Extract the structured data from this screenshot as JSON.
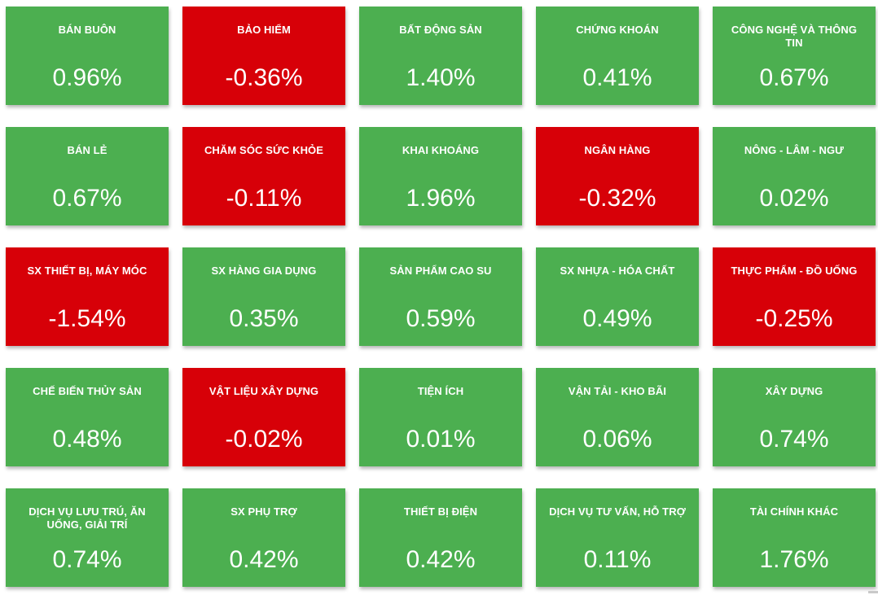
{
  "colors": {
    "positive_bg": "#4CAF50",
    "negative_bg": "#D70008",
    "tile_text": "#FFFFFF",
    "page_bg": "#FFFFFF"
  },
  "tiles": [
    {
      "name": "BÁN BUÔN",
      "value": "0.96%",
      "direction": "up"
    },
    {
      "name": "BẢO HIỂM",
      "value": "-0.36%",
      "direction": "down"
    },
    {
      "name": "BẤT ĐỘNG SẢN",
      "value": "1.40%",
      "direction": "up"
    },
    {
      "name": "CHỨNG KHOÁN",
      "value": "0.41%",
      "direction": "up"
    },
    {
      "name": "CÔNG NGHỆ VÀ THÔNG\nTIN",
      "value": "0.67%",
      "direction": "up"
    },
    {
      "name": "BÁN LẺ",
      "value": "0.67%",
      "direction": "up"
    },
    {
      "name": "CHĂM SÓC SỨC KHỎE",
      "value": "-0.11%",
      "direction": "down"
    },
    {
      "name": "KHAI KHOÁNG",
      "value": "1.96%",
      "direction": "up"
    },
    {
      "name": "NGÂN HÀNG",
      "value": "-0.32%",
      "direction": "down"
    },
    {
      "name": "NÔNG - LÂM - NGƯ",
      "value": "0.02%",
      "direction": "up"
    },
    {
      "name": "SX THIẾT BỊ, MÁY MÓC",
      "value": "-1.54%",
      "direction": "down"
    },
    {
      "name": "SX HÀNG GIA DỤNG",
      "value": "0.35%",
      "direction": "up"
    },
    {
      "name": "SẢN PHẨM CAO SU",
      "value": "0.59%",
      "direction": "up"
    },
    {
      "name": "SX NHỰA - HÓA CHẤT",
      "value": "0.49%",
      "direction": "up"
    },
    {
      "name": "THỰC PHẨM - ĐỒ UỐNG",
      "value": "-0.25%",
      "direction": "down"
    },
    {
      "name": "CHẾ BIẾN THỦY SẢN",
      "value": "0.48%",
      "direction": "up"
    },
    {
      "name": "VẬT LIỆU XÂY DỰNG",
      "value": "-0.02%",
      "direction": "down"
    },
    {
      "name": "TIỆN ÍCH",
      "value": "0.01%",
      "direction": "up"
    },
    {
      "name": "VẬN TẢI - KHO BÃI",
      "value": "0.06%",
      "direction": "up"
    },
    {
      "name": "XÂY DỰNG",
      "value": "0.74%",
      "direction": "up"
    },
    {
      "name": "DỊCH VỤ LƯU TRÚ, ĂN\nUỐNG, GIẢI TRÍ",
      "value": "0.74%",
      "direction": "up"
    },
    {
      "name": "SX PHỤ TRỢ",
      "value": "0.42%",
      "direction": "up"
    },
    {
      "name": "THIẾT BỊ ĐIỆN",
      "value": "0.42%",
      "direction": "up"
    },
    {
      "name": "DỊCH VỤ TƯ VẤN, HỖ TRỢ",
      "value": "0.11%",
      "direction": "up"
    },
    {
      "name": "TÀI CHÍNH KHÁC",
      "value": "1.76%",
      "direction": "up"
    }
  ],
  "chart_data": {
    "type": "heatmap",
    "layout": "5x5 tile grid, row-major",
    "unit": "%",
    "categories": [
      "BÁN BUÔN",
      "BẢO HIỂM",
      "BẤT ĐỘNG SẢN",
      "CHỨNG KHOÁN",
      "CÔNG NGHỆ VÀ THÔNG TIN",
      "BÁN LẺ",
      "CHĂM SÓC SỨC KHỎE",
      "KHAI KHOÁNG",
      "NGÂN HÀNG",
      "NÔNG - LÂM - NGƯ",
      "SX THIẾT BỊ, MÁY MÓC",
      "SX HÀNG GIA DỤNG",
      "SẢN PHẨM CAO SU",
      "SX NHỰA - HÓA CHẤT",
      "THỰC PHẨM - ĐỒ UỐNG",
      "CHẾ BIẾN THỦY SẢN",
      "VẬT LIỆU XÂY DỰNG",
      "TIỆN ÍCH",
      "VẬN TẢI - KHO BÃI",
      "XÂY DỰNG",
      "DỊCH VỤ LƯU TRÚ, ĂN UỐNG, GIẢI TRÍ",
      "SX PHỤ TRỢ",
      "THIẾT BỊ ĐIỆN",
      "DỊCH VỤ TƯ VẤN, HỖ TRỢ",
      "TÀI CHÍNH KHÁC"
    ],
    "values": [
      0.96,
      -0.36,
      1.4,
      0.41,
      0.67,
      0.67,
      -0.11,
      1.96,
      -0.32,
      0.02,
      -1.54,
      0.35,
      0.59,
      0.49,
      -0.25,
      0.48,
      -0.02,
      0.01,
      0.06,
      0.74,
      0.74,
      0.42,
      0.42,
      0.11,
      1.76
    ],
    "positive_color": "#4CAF50",
    "negative_color": "#D70008",
    "legend": "green = gain, red = loss"
  }
}
